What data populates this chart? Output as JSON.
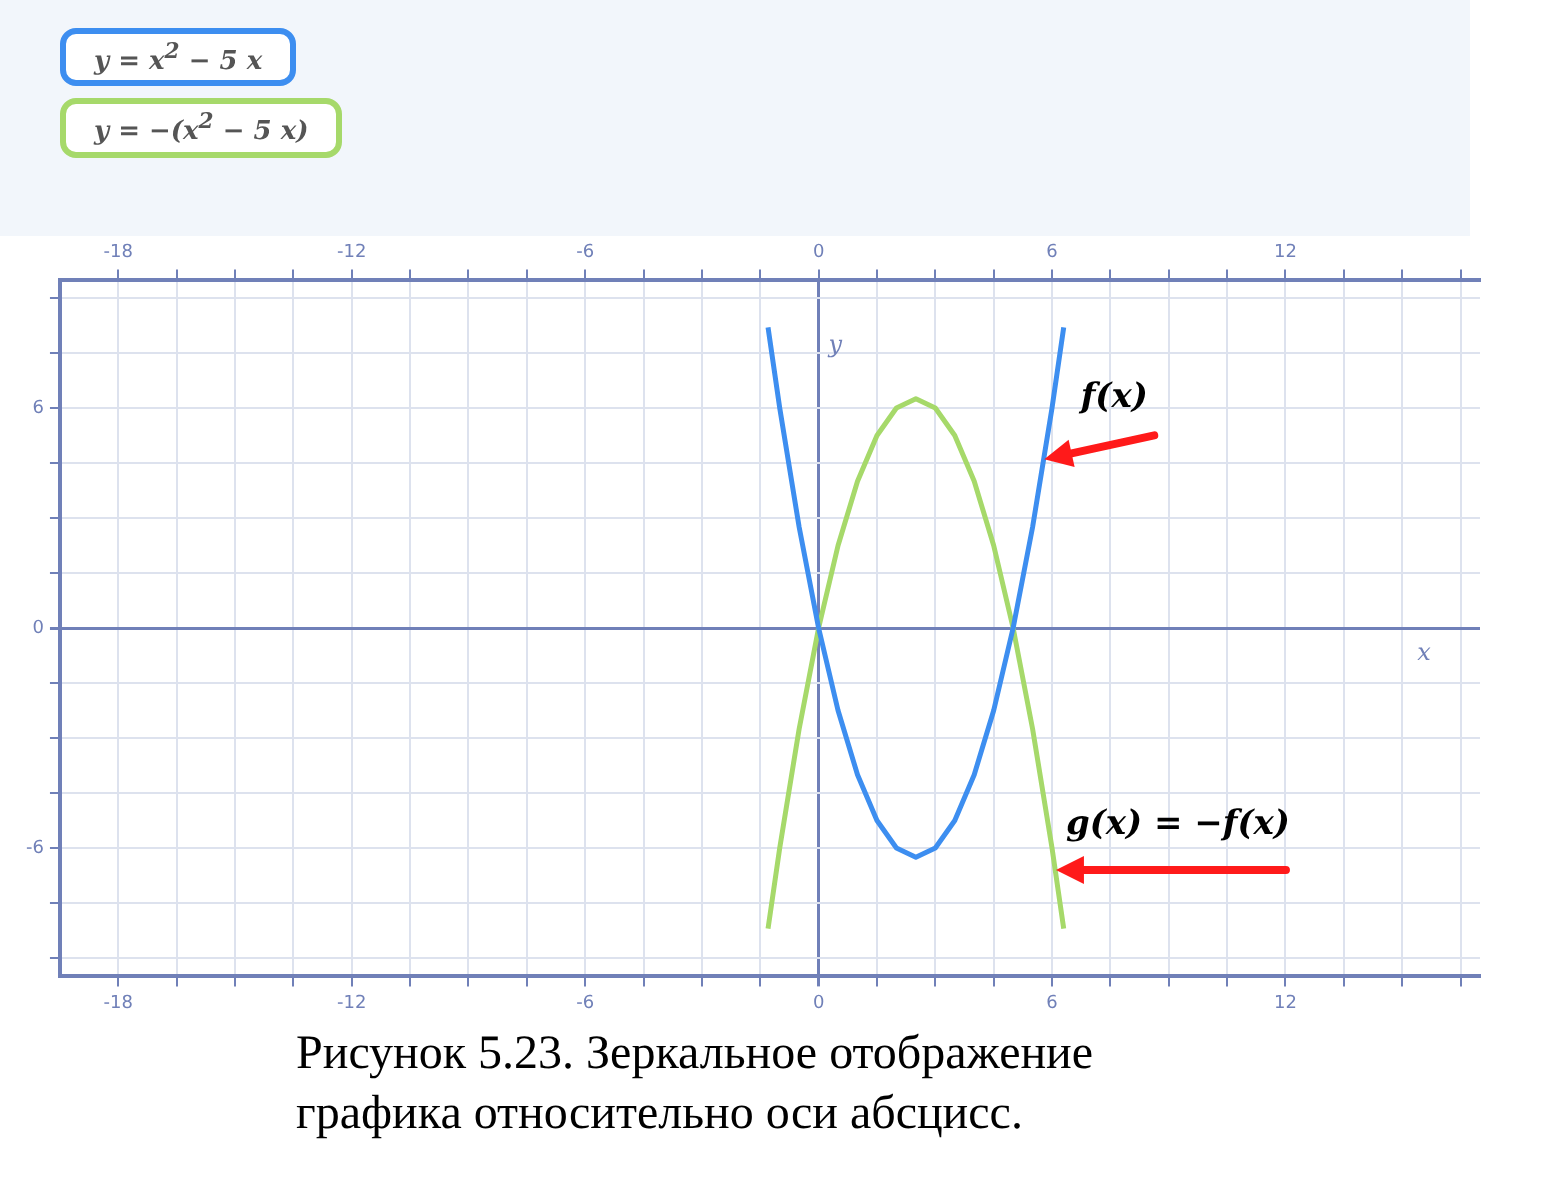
{
  "chart_data": {
    "type": "line",
    "xlabel": "x",
    "ylabel": "y",
    "xlim": [
      -19.5,
      17
    ],
    "x2lim": [
      -19.5,
      17
    ],
    "ylim": [
      -9.5,
      9.5
    ],
    "xticks": [
      -18,
      {
        "value": -16.5,
        "label": null
      },
      {
        "value": -15,
        "label": null
      },
      {
        "value": -13.5,
        "label": null
      },
      -12,
      {
        "value": -10.5,
        "label": null
      },
      {
        "value": -9,
        "label": null
      },
      {
        "value": -7.5,
        "label": null
      },
      -6,
      {
        "value": -4.5,
        "label": null
      },
      {
        "value": -3,
        "label": null
      },
      {
        "value": -1.5,
        "label": null
      },
      0,
      {
        "value": 1.5,
        "label": null
      },
      {
        "value": 3,
        "label": null
      },
      {
        "value": 4.5,
        "label": null
      },
      6,
      {
        "value": 7.5,
        "label": null
      },
      {
        "value": 9,
        "label": null
      },
      {
        "value": 10.5,
        "label": null
      },
      12,
      {
        "value": 13.5,
        "label": null
      },
      {
        "value": 15,
        "label": null
      },
      {
        "value": 16.5,
        "label": null
      }
    ],
    "x2ticks": [
      -18,
      {
        "value": -16.5,
        "label": null
      },
      {
        "value": -15,
        "label": null
      },
      {
        "value": -13.5,
        "label": null
      },
      -12,
      {
        "value": -10.5,
        "label": null
      },
      {
        "value": -9,
        "label": null
      },
      {
        "value": -7.5,
        "label": null
      },
      -6,
      {
        "value": -4.5,
        "label": null
      },
      {
        "value": -3,
        "label": null
      },
      {
        "value": -1.5,
        "label": null
      },
      0,
      {
        "value": 1.5,
        "label": null
      },
      {
        "value": 3,
        "label": null
      },
      {
        "value": 4.5,
        "label": null
      },
      6,
      {
        "value": 7.5,
        "label": null
      },
      {
        "value": 9,
        "label": null
      },
      {
        "value": 10.5,
        "label": null
      },
      12,
      {
        "value": 13.5,
        "label": null
      },
      {
        "value": 15,
        "label": null
      },
      {
        "value": 16.5,
        "label": null
      }
    ],
    "yticks": [
      {
        "value": -9,
        "label": null
      },
      {
        "value": -7.5,
        "label": null
      },
      -6,
      {
        "value": -4.5,
        "label": null
      },
      {
        "value": -3,
        "label": null
      },
      {
        "value": -1.5,
        "label": null
      },
      0,
      {
        "value": 1.5,
        "label": null
      },
      {
        "value": 3,
        "label": null
      },
      {
        "value": 4.5,
        "label": null
      },
      6,
      {
        "value": 7.5,
        "label": null
      },
      {
        "value": 9,
        "label": null
      }
    ],
    "grid": true,
    "legend": "top left",
    "marker": "none",
    "line_style": "solid",
    "series": [
      {
        "name": "y = x$^{2}$ − 5 x",
        "color": "#3d8ef0",
        "x": [
          -1.3,
          -1,
          -0.5,
          0,
          0.5,
          1,
          1.5,
          2,
          2.5,
          3,
          3.5,
          4,
          4.5,
          5,
          5.5,
          6,
          6.3
        ],
        "values": [
          8.2,
          6,
          2.75,
          0,
          -2.25,
          -4,
          -5.25,
          -6,
          -6.25,
          -6,
          -5.25,
          -4,
          -2.25,
          0,
          2.75,
          6,
          8.2
        ]
      },
      {
        "name": "y = −(x$^{2}$ − 5 x)",
        "color": "#a6d96a",
        "x": [
          -1.3,
          -1,
          -0.5,
          0,
          0.5,
          1,
          1.5,
          2,
          2.5,
          3,
          3.5,
          4,
          4.5,
          5,
          5.5,
          6,
          6.3
        ],
        "values": [
          -8.2,
          -6,
          -2.75,
          0,
          2.25,
          4,
          5.25,
          6,
          6.25,
          6,
          5.25,
          4,
          2.25,
          0,
          -2.75,
          -6,
          -8.2
        ]
      }
    ],
    "annotations": [
      {
        "text": "f(x)",
        "x": 5.8,
        "y": 4.6
      },
      {
        "text": "g(x) = −f(x)",
        "x": 6.1,
        "y": -6.6
      },
      "Рисунок 5.23. Зеркальное отображение графика относительно оси абсцисс."
    ]
  }
}
